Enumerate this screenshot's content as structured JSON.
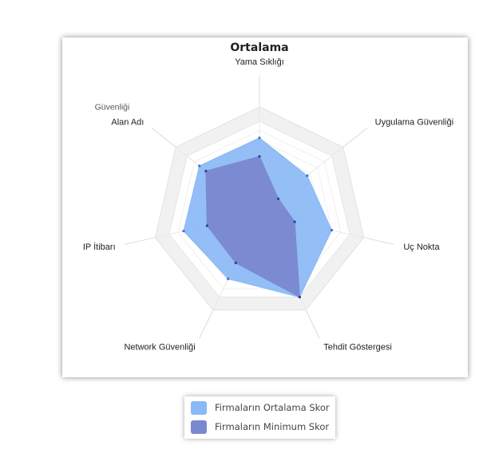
{
  "chart_data": {
    "type": "radar",
    "title": "Ortalama",
    "axes": [
      "Yama Sıklığı",
      "Uygulama Güvenliği",
      "Uç Nokta",
      "Tehdit Göstergesi",
      "Network Güvenliği",
      "IP İtibarı",
      "Alan Adı Güvenliği"
    ],
    "axis_label_lines": [
      [
        "Yama Sıklığı"
      ],
      [
        "Uygulama Güvenliği"
      ],
      [
        "Uç Nokta"
      ],
      [
        "Tehdit Göstergesi"
      ],
      [
        "Network Güvenliği"
      ],
      [
        "IP İtibarı"
      ],
      [
        "Güvenliği",
        "Alan Adı"
      ]
    ],
    "range": [
      0,
      100
    ],
    "grid_levels": 10,
    "series": [
      {
        "name": "Firmaların Ortalama Skor",
        "color": "#8ab9f5",
        "values": [
          82,
          66,
          80,
          100,
          78,
          84,
          83
        ]
      },
      {
        "name": "Firmaların Minimum Skor",
        "color": "#7a88cf",
        "values": [
          62,
          26,
          39,
          100,
          59,
          58,
          74
        ]
      }
    ],
    "legend_position": "bottom",
    "grid": true
  }
}
